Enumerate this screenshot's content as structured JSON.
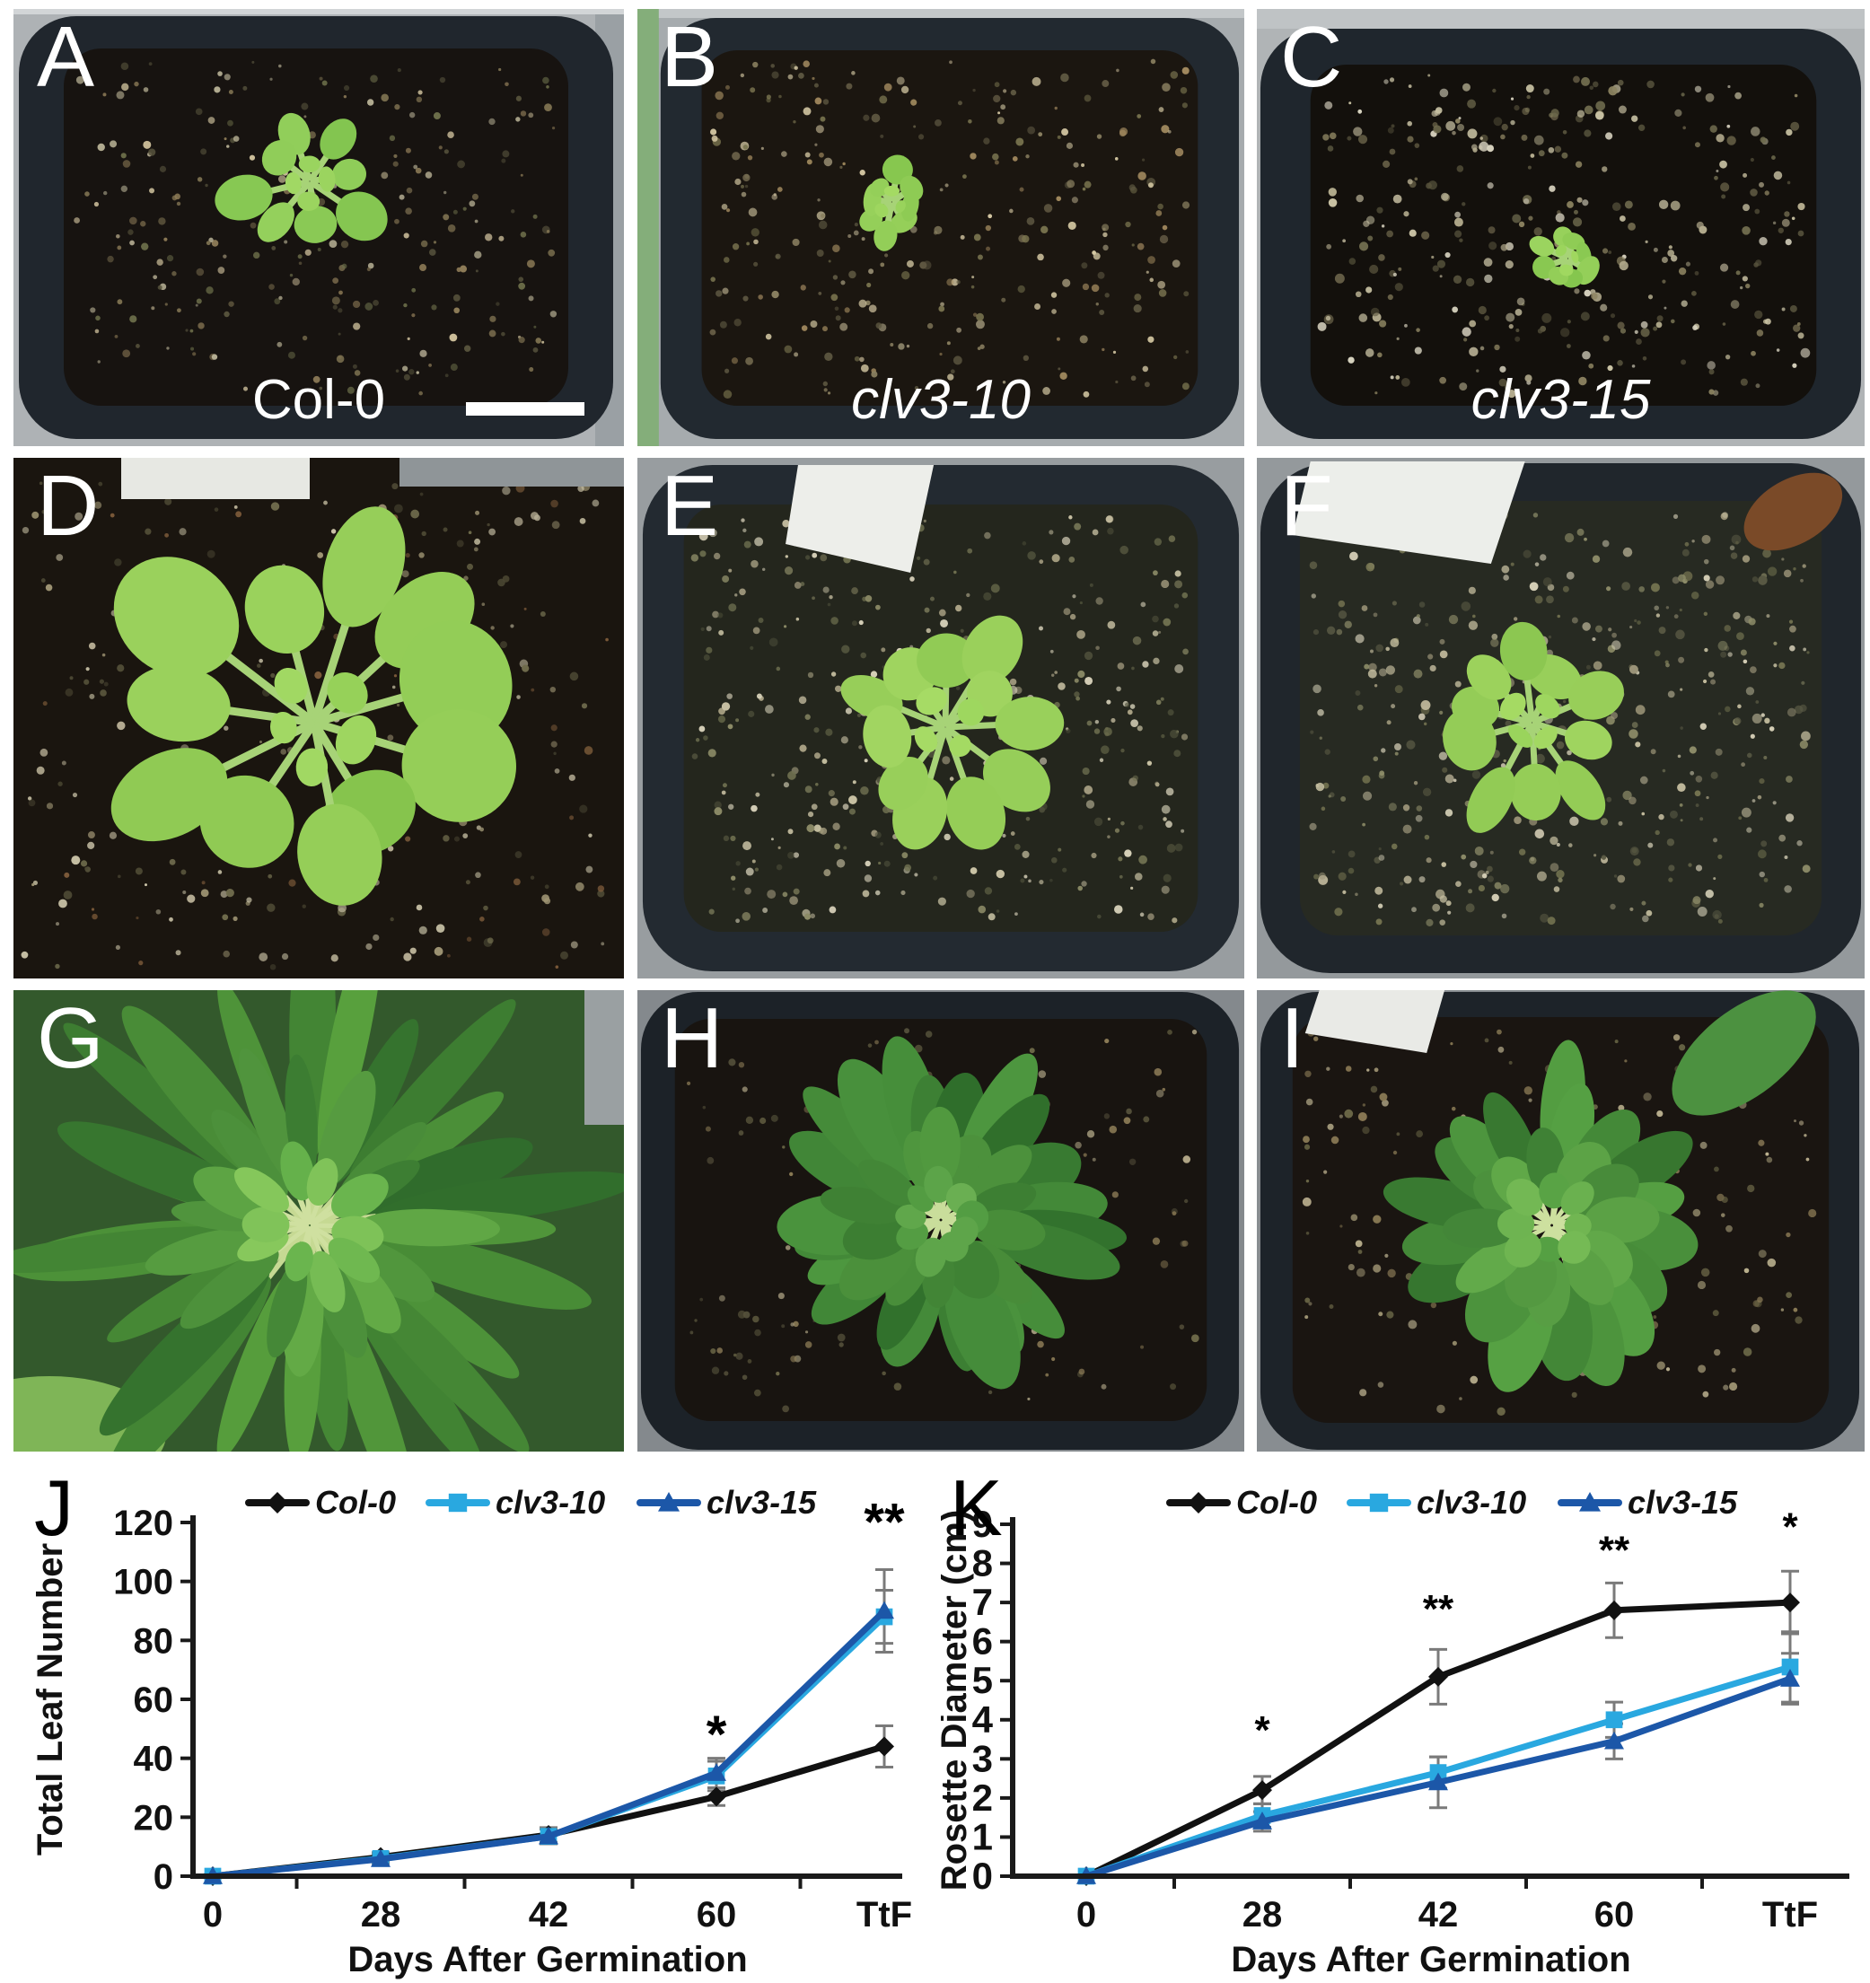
{
  "figure": {
    "panels": [
      {
        "letter": "A",
        "genotype_label": "Col-0",
        "label_italic": false,
        "has_scale_bar": true
      },
      {
        "letter": "B",
        "genotype_label": "clv3-10",
        "label_italic": true
      },
      {
        "letter": "C",
        "genotype_label": "clv3-15",
        "label_italic": true
      },
      {
        "letter": "D"
      },
      {
        "letter": "E"
      },
      {
        "letter": "F"
      },
      {
        "letter": "G"
      },
      {
        "letter": "H"
      },
      {
        "letter": "I"
      }
    ]
  },
  "colors": {
    "col0_line": "#111111",
    "clv3_10_line": "#29a8e0",
    "clv3_15_line": "#1c57a8",
    "error_bar": "#7a7a7a",
    "panel_letter": "#ffffff",
    "chart_letter": "#000000"
  },
  "chart_data": [
    {
      "panel_letter": "J",
      "type": "line",
      "categories": [
        "0",
        "28",
        "42",
        "60",
        "TtF"
      ],
      "xlabel": "Days After Germination",
      "ylabel": "Total Leaf Number",
      "ylim": [
        0,
        120
      ],
      "ytick_step": 20,
      "grid": false,
      "legend_position": "top",
      "series": [
        {
          "name": "Col-0",
          "marker": "diamond",
          "color": "#111111",
          "values": [
            0,
            6.5,
            14,
            27,
            44
          ],
          "errors": [
            0.5,
            1.5,
            2.5,
            3,
            7
          ]
        },
        {
          "name": "clv3-10",
          "marker": "square",
          "color": "#29a8e0",
          "values": [
            0,
            6,
            13.5,
            34,
            88
          ],
          "errors": [
            0.5,
            1.5,
            2.5,
            5,
            9
          ]
        },
        {
          "name": "clv3-15",
          "marker": "triangle",
          "color": "#1c57a8",
          "values": [
            0,
            5.8,
            13.5,
            35,
            90
          ],
          "errors": [
            0.5,
            1.5,
            2.5,
            5,
            14
          ]
        }
      ],
      "annotations": [
        {
          "category": "60",
          "text": "*",
          "y": 42
        },
        {
          "category": "TtF",
          "text": "**",
          "y": 114
        }
      ]
    },
    {
      "panel_letter": "K",
      "type": "line",
      "categories": [
        "0",
        "28",
        "42",
        "60",
        "TtF"
      ],
      "xlabel": "Days After Germination",
      "ylabel": "Rosette Diameter (cm)",
      "ylim": [
        0,
        9
      ],
      "ytick_step": 1,
      "grid": false,
      "legend_position": "top",
      "series": [
        {
          "name": "Col-0",
          "marker": "diamond",
          "color": "#111111",
          "values": [
            0,
            2.2,
            5.1,
            6.8,
            7.0
          ],
          "errors": [
            0,
            0.35,
            0.7,
            0.7,
            0.8
          ]
        },
        {
          "name": "clv3-10",
          "marker": "square",
          "color": "#29a8e0",
          "values": [
            0,
            1.55,
            2.65,
            4.0,
            5.35
          ],
          "errors": [
            0,
            0.3,
            0.4,
            0.45,
            0.9
          ]
        },
        {
          "name": "clv3-15",
          "marker": "triangle",
          "color": "#1c57a8",
          "values": [
            0,
            1.4,
            2.4,
            3.45,
            5.05
          ],
          "errors": [
            0,
            0.25,
            0.65,
            0.45,
            0.65
          ]
        }
      ],
      "annotations": [
        {
          "category": "28",
          "text": "*",
          "y": 3.4
        },
        {
          "category": "42",
          "text": "**",
          "y": 6.5
        },
        {
          "category": "60",
          "text": "**",
          "y": 8.0
        },
        {
          "category": "TtF",
          "text": "*",
          "y": 8.6
        }
      ]
    }
  ]
}
